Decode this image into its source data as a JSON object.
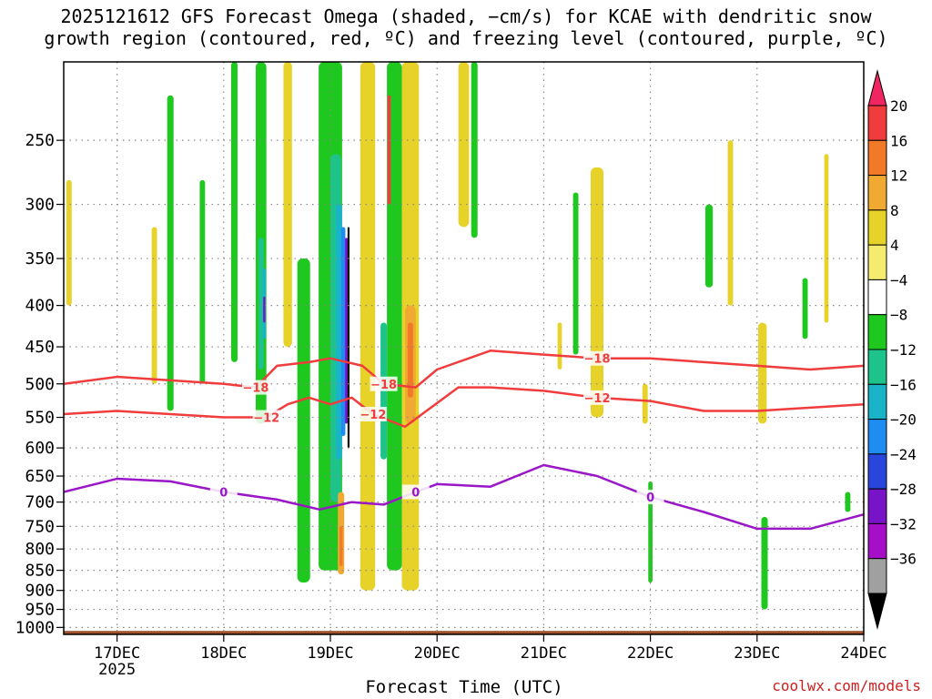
{
  "title": {
    "line1": "2025121612 GFS Forecast Omega (shaded, −cm/s) for KCAE with dendritic snow",
    "line2": "growth region (contoured, red, ºC) and freezing level (contoured, purple, ºC)"
  },
  "credit": "coolwx.com/models",
  "colors": {
    "isotherm_red": "#f03c3c",
    "freezing_purple": "#9a17c8",
    "terrain": "#a0522d",
    "grid": "#888888"
  },
  "chart_data": {
    "type": "heatmap",
    "xlabel": "Forecast Time (UTC)",
    "x_ticks": [
      "17DEC",
      "18DEC",
      "19DEC",
      "20DEC",
      "21DEC",
      "22DEC",
      "23DEC",
      "24DEC"
    ],
    "x_year": "2025",
    "xlim_days": [
      16.5,
      24.0
    ],
    "y_ticks": [
      250,
      300,
      350,
      400,
      450,
      500,
      550,
      600,
      650,
      700,
      750,
      800,
      850,
      900,
      950,
      1000
    ],
    "ylim_hpa": [
      200,
      1020
    ],
    "colorbar": {
      "labels": [
        "20",
        "16",
        "12",
        "8",
        "4",
        "−4",
        "−8",
        "−12",
        "−16",
        "−20",
        "−24",
        "−28",
        "−32",
        "−36"
      ],
      "colors": [
        "#f02662",
        "#f03c3c",
        "#f07a28",
        "#f0aa32",
        "#e6d228",
        "#f5eb6e",
        "#ffffff",
        "#1ec81e",
        "#1ec38c",
        "#19b4c8",
        "#1e8cf0",
        "#2846dc",
        "#7814c8",
        "#a50fc8",
        "#a0a0a0",
        "#000000"
      ]
    },
    "isotherms": [
      {
        "label": "−18",
        "color": "#f03c3c",
        "days": [
          16.5,
          17.0,
          17.5,
          18.0,
          18.3,
          18.5,
          18.8,
          19.0,
          19.3,
          19.5,
          19.8,
          20.0,
          20.5,
          21.0,
          21.5,
          22.0,
          22.5,
          23.0,
          23.5,
          24.0
        ],
        "hpa": [
          500,
          490,
          495,
          500,
          505,
          475,
          470,
          465,
          475,
          500,
          505,
          480,
          455,
          460,
          465,
          465,
          470,
          475,
          480,
          475
        ]
      },
      {
        "label": "−12",
        "color": "#f03c3c",
        "days": [
          16.5,
          17.0,
          17.5,
          18.0,
          18.4,
          18.6,
          18.8,
          19.0,
          19.2,
          19.4,
          19.7,
          19.9,
          20.2,
          20.5,
          21.0,
          21.5,
          22.0,
          22.5,
          23.0,
          23.5,
          24.0
        ],
        "hpa": [
          545,
          540,
          545,
          550,
          550,
          530,
          520,
          530,
          520,
          545,
          565,
          540,
          505,
          505,
          510,
          520,
          525,
          540,
          540,
          535,
          530
        ]
      },
      {
        "label": "0",
        "color": "#9a17c8",
        "days": [
          16.5,
          17.0,
          17.5,
          18.0,
          18.5,
          18.9,
          19.2,
          19.5,
          19.8,
          20.0,
          20.5,
          21.0,
          21.5,
          22.0,
          22.5,
          23.0,
          23.5,
          24.0
        ],
        "hpa": [
          680,
          655,
          660,
          680,
          695,
          715,
          700,
          705,
          680,
          665,
          670,
          630,
          650,
          690,
          720,
          755,
          755,
          725
        ]
      }
    ],
    "shaded_regions": [
      {
        "bin": "−8..−4",
        "color": "#1ec81e",
        "day": 17.5,
        "p1": 220,
        "p2": 540,
        "w": 0.06
      },
      {
        "bin": "−8..−4",
        "color": "#1ec81e",
        "day": 17.8,
        "p1": 280,
        "p2": 500,
        "w": 0.05
      },
      {
        "bin": "−8..−4",
        "color": "#1ec81e",
        "day": 18.1,
        "p1": 200,
        "p2": 470,
        "w": 0.06
      },
      {
        "bin": "−8..−4",
        "color": "#1ec81e",
        "day": 18.35,
        "p1": 200,
        "p2": 560,
        "w": 0.1
      },
      {
        "bin": "−8..−4",
        "color": "#1ec81e",
        "day": 18.75,
        "p1": 350,
        "p2": 880,
        "w": 0.12
      },
      {
        "bin": "−8..−4",
        "color": "#1ec81e",
        "day": 19.0,
        "p1": 200,
        "p2": 850,
        "w": 0.22
      },
      {
        "bin": "−8..−4",
        "color": "#1ec81e",
        "day": 19.6,
        "p1": 200,
        "p2": 850,
        "w": 0.14
      },
      {
        "bin": "−8..−4",
        "color": "#1ec81e",
        "day": 20.35,
        "p1": 200,
        "p2": 330,
        "w": 0.06
      },
      {
        "bin": "−8..−4",
        "color": "#1ec81e",
        "day": 21.3,
        "p1": 290,
        "p2": 460,
        "w": 0.05
      },
      {
        "bin": "−8..−4",
        "color": "#1ec81e",
        "day": 22.55,
        "p1": 300,
        "p2": 380,
        "w": 0.07
      },
      {
        "bin": "−8..−4",
        "color": "#1ec81e",
        "day": 22.0,
        "p1": 660,
        "p2": 880,
        "w": 0.04
      },
      {
        "bin": "−8..−4",
        "color": "#1ec81e",
        "day": 23.07,
        "p1": 730,
        "p2": 950,
        "w": 0.06
      },
      {
        "bin": "−8..−4",
        "color": "#1ec81e",
        "day": 23.45,
        "p1": 370,
        "p2": 440,
        "w": 0.05
      },
      {
        "bin": "−8..−4",
        "color": "#1ec81e",
        "day": 23.85,
        "p1": 680,
        "p2": 720,
        "w": 0.05
      },
      {
        "bin": "−12..−8",
        "color": "#1ec38c",
        "day": 18.35,
        "p1": 330,
        "p2": 480,
        "w": 0.05
      },
      {
        "bin": "−12..−8",
        "color": "#1ec38c",
        "day": 19.05,
        "p1": 260,
        "p2": 700,
        "w": 0.1
      },
      {
        "bin": "−12..−8",
        "color": "#1ec38c",
        "day": 19.5,
        "p1": 420,
        "p2": 620,
        "w": 0.06
      },
      {
        "bin": "−16..−12",
        "color": "#19b4c8",
        "day": 19.08,
        "p1": 300,
        "p2": 620,
        "w": 0.06
      },
      {
        "bin": "−16..−12",
        "color": "#19b4c8",
        "day": 18.38,
        "p1": 360,
        "p2": 440,
        "w": 0.03
      },
      {
        "bin": "−20..−16",
        "color": "#1e8cf0",
        "day": 19.12,
        "p1": 320,
        "p2": 580,
        "w": 0.04
      },
      {
        "bin": "−28..−24",
        "color": "#7814c8",
        "day": 18.38,
        "p1": 390,
        "p2": 420,
        "w": 0.02
      },
      {
        "bin": "−28..−24",
        "color": "#7814c8",
        "day": 19.15,
        "p1": 330,
        "p2": 560,
        "w": 0.025
      },
      {
        "bin": "<−36",
        "color": "#000000",
        "day": 19.17,
        "p1": 320,
        "p2": 600,
        "w": 0.018
      },
      {
        "bin": "4..8",
        "color": "#e6d228",
        "day": 16.55,
        "p1": 280,
        "p2": 400,
        "w": 0.05
      },
      {
        "bin": "4..8",
        "color": "#e6d228",
        "day": 17.35,
        "p1": 320,
        "p2": 500,
        "w": 0.05
      },
      {
        "bin": "4..8",
        "color": "#e6d228",
        "day": 18.6,
        "p1": 200,
        "p2": 450,
        "w": 0.08
      },
      {
        "bin": "4..8",
        "color": "#e6d228",
        "day": 19.35,
        "p1": 200,
        "p2": 900,
        "w": 0.14
      },
      {
        "bin": "4..8",
        "color": "#e6d228",
        "day": 19.75,
        "p1": 200,
        "p2": 900,
        "w": 0.16
      },
      {
        "bin": "4..8",
        "color": "#e6d228",
        "day": 20.25,
        "p1": 200,
        "p2": 320,
        "w": 0.1
      },
      {
        "bin": "4..8",
        "color": "#e6d228",
        "day": 21.5,
        "p1": 270,
        "p2": 550,
        "w": 0.12
      },
      {
        "bin": "4..8",
        "color": "#e6d228",
        "day": 21.95,
        "p1": 500,
        "p2": 560,
        "w": 0.05
      },
      {
        "bin": "4..8",
        "color": "#e6d228",
        "day": 22.75,
        "p1": 250,
        "p2": 400,
        "w": 0.05
      },
      {
        "bin": "4..8",
        "color": "#e6d228",
        "day": 23.05,
        "p1": 420,
        "p2": 560,
        "w": 0.08
      },
      {
        "bin": "4..8",
        "color": "#e6d228",
        "day": 23.65,
        "p1": 260,
        "p2": 420,
        "w": 0.04
      },
      {
        "bin": "4..8",
        "color": "#e6d228",
        "day": 21.15,
        "p1": 420,
        "p2": 480,
        "w": 0.04
      },
      {
        "bin": "8..12",
        "color": "#f0aa32",
        "day": 19.75,
        "p1": 400,
        "p2": 560,
        "w": 0.1
      },
      {
        "bin": "8..12",
        "color": "#f0aa32",
        "day": 19.1,
        "p1": 680,
        "p2": 860,
        "w": 0.06
      },
      {
        "bin": "12..16",
        "color": "#f07a28",
        "day": 19.75,
        "p1": 420,
        "p2": 520,
        "w": 0.05
      },
      {
        "bin": "12..16",
        "color": "#f07a28",
        "day": 19.1,
        "p1": 750,
        "p2": 840,
        "w": 0.03
      },
      {
        "bin": "16..20",
        "color": "#f03c3c",
        "day": 19.55,
        "p1": 220,
        "p2": 300,
        "w": 0.03
      }
    ],
    "terrain_surface_hpa": 1010,
    "grid": "dotted"
  }
}
